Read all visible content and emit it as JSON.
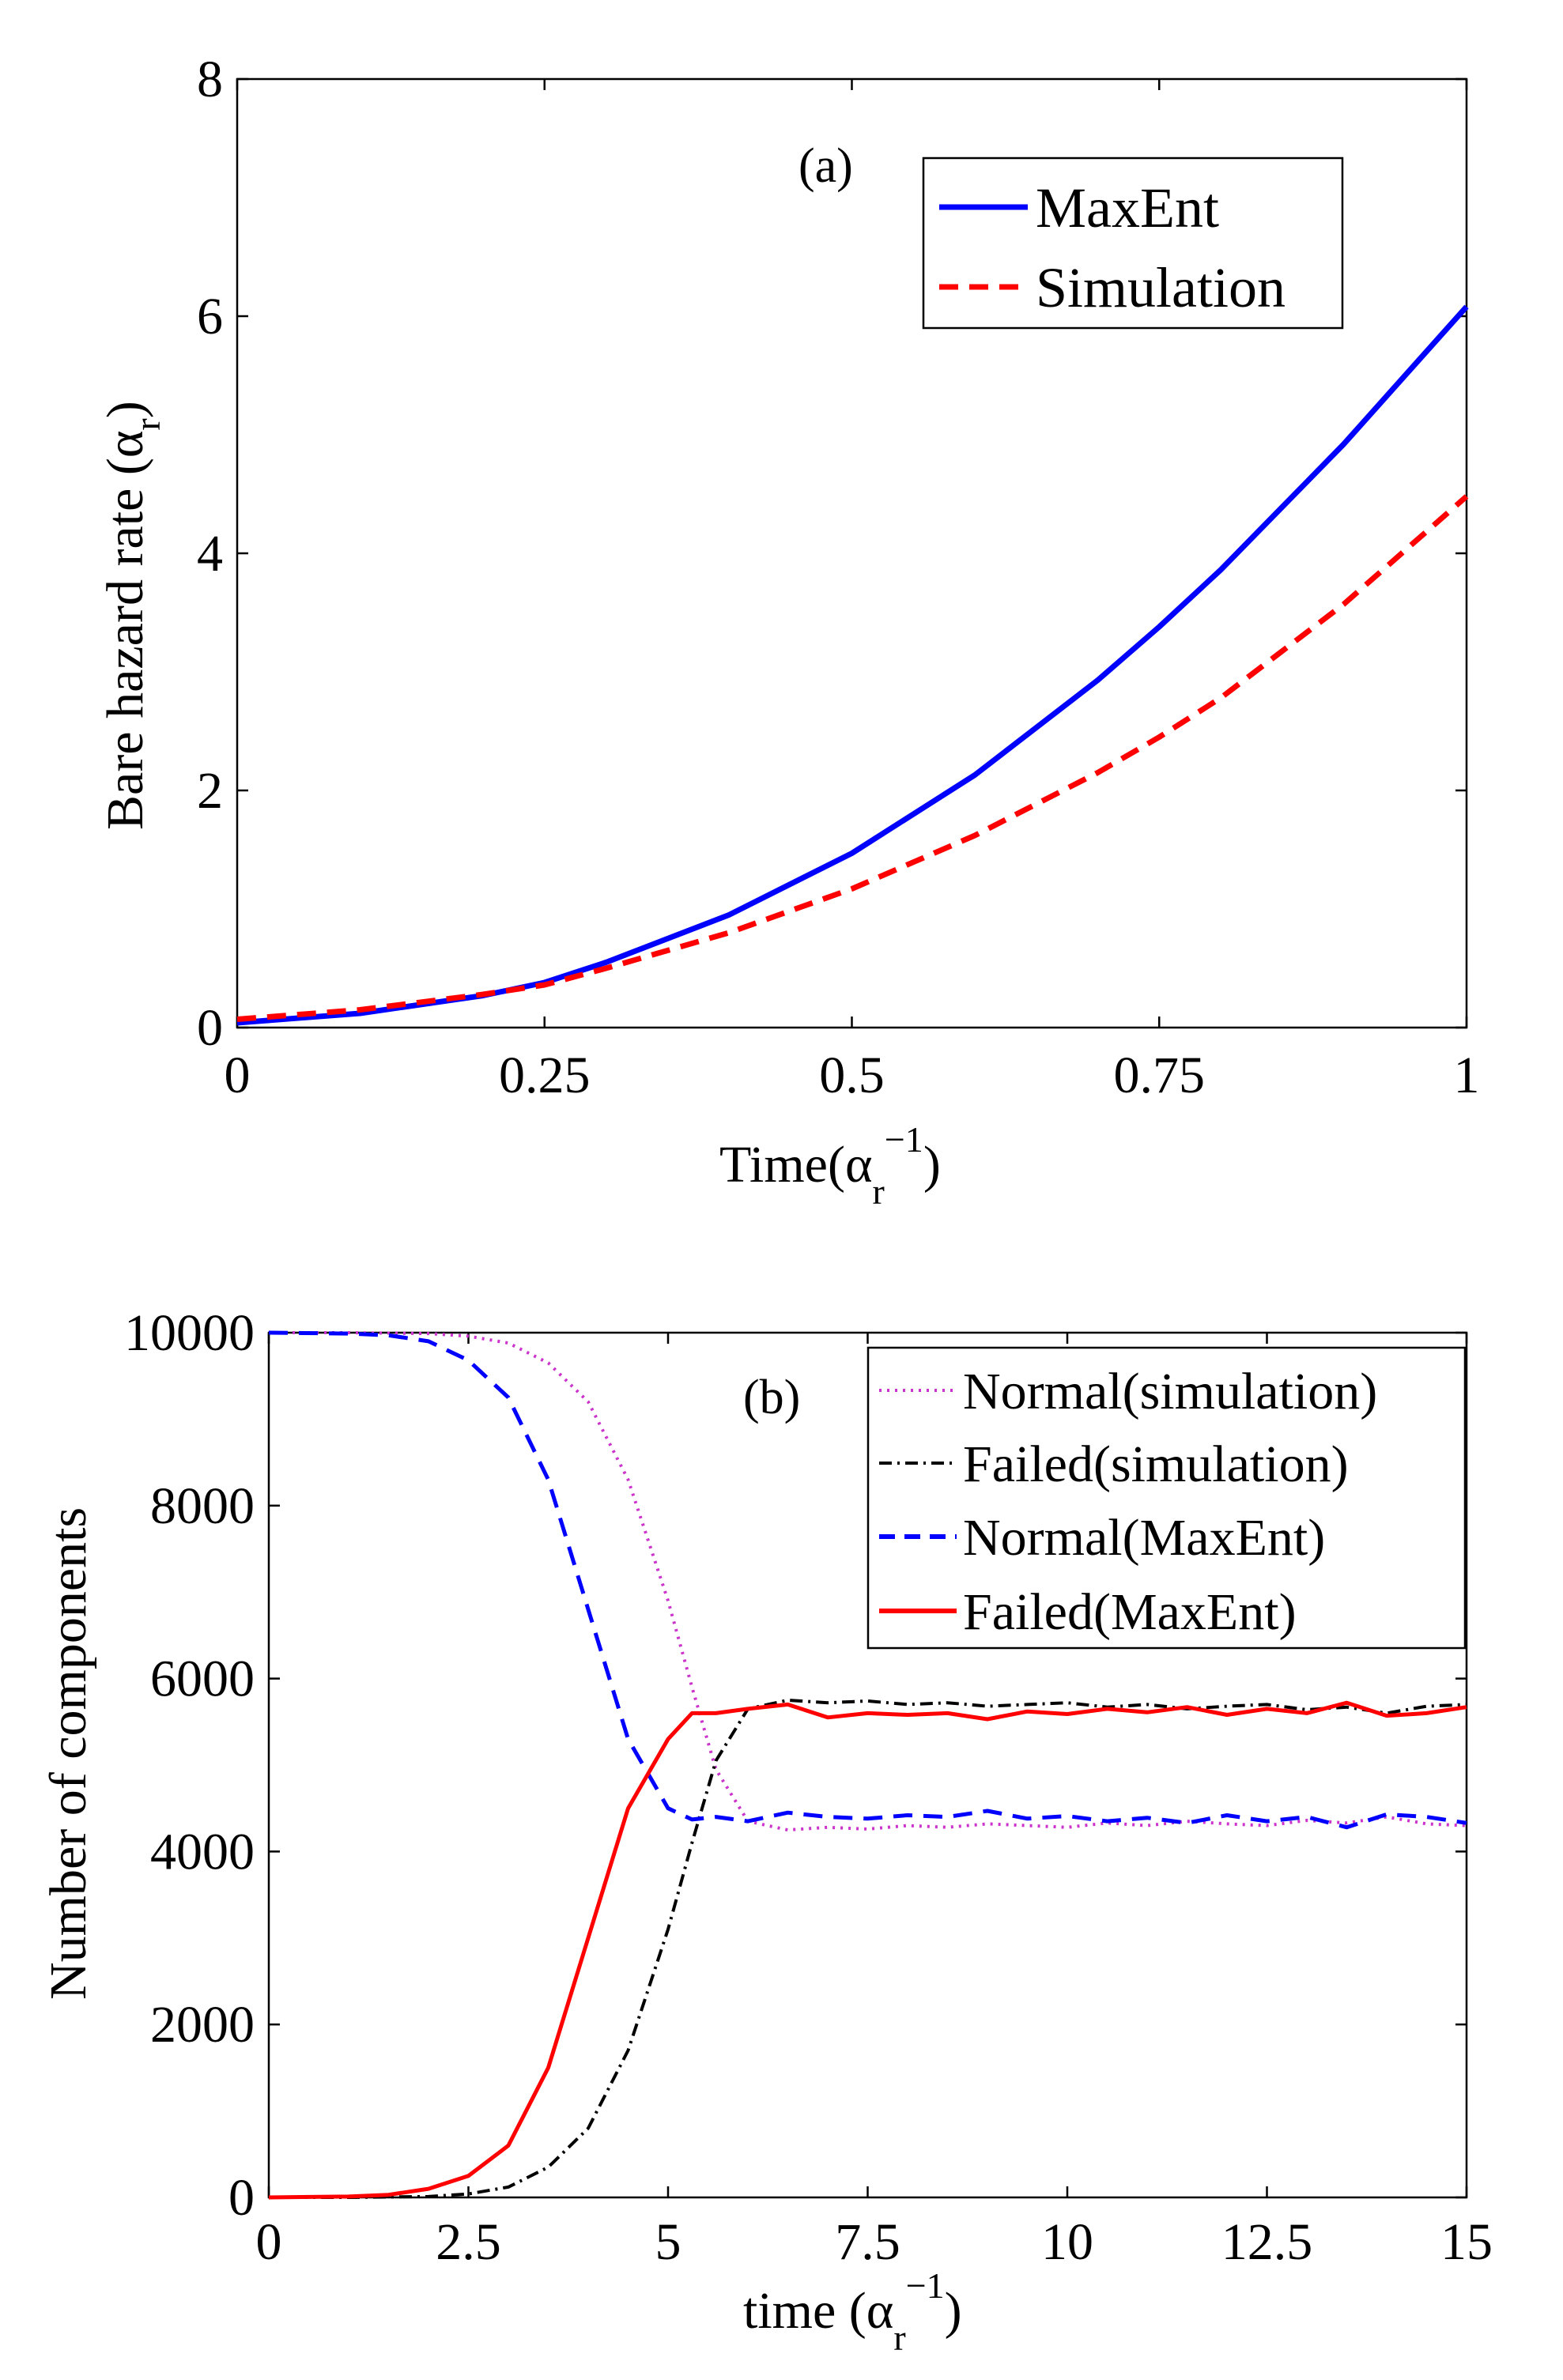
{
  "chart_data": [
    {
      "type": "line",
      "panel_label": "(a)",
      "xlabel": "Time(α_r^-1)",
      "ylabel": "Bare hazard rate (α_r)",
      "xlim": [
        0,
        1
      ],
      "ylim": [
        0,
        8
      ],
      "xticks": [
        0,
        0.25,
        0.5,
        0.75,
        1
      ],
      "xtick_labels": [
        "0",
        "0.25",
        "0.5",
        "0.75",
        "1"
      ],
      "yticks": [
        0,
        2,
        4,
        6,
        8
      ],
      "ytick_labels": [
        "0",
        "2",
        "4",
        "6",
        "8"
      ],
      "legend_position": "top-right",
      "grid": false,
      "series": [
        {
          "name": "MaxEnt",
          "color": "#0000ff",
          "style": "solid",
          "x": [
            0,
            0.1,
            0.2,
            0.25,
            0.3,
            0.4,
            0.5,
            0.6,
            0.7,
            0.75,
            0.8,
            0.9,
            1.0
          ],
          "y": [
            0.04,
            0.12,
            0.27,
            0.38,
            0.55,
            0.95,
            1.47,
            2.13,
            2.93,
            3.38,
            3.86,
            4.92,
            6.08
          ]
        },
        {
          "name": "Simulation",
          "color": "#ff0000",
          "style": "dashed",
          "x": [
            0,
            0.1,
            0.2,
            0.25,
            0.3,
            0.4,
            0.5,
            0.6,
            0.7,
            0.75,
            0.8,
            0.9,
            1.0
          ],
          "y": [
            0.07,
            0.15,
            0.28,
            0.36,
            0.5,
            0.8,
            1.17,
            1.62,
            2.15,
            2.45,
            2.78,
            3.57,
            4.48
          ]
        }
      ]
    },
    {
      "type": "line",
      "panel_label": "(b)",
      "xlabel": "time (α_r^-1)",
      "ylabel": "Number of components",
      "xlim": [
        0,
        15
      ],
      "ylim": [
        0,
        10000
      ],
      "xticks": [
        0,
        2.5,
        5,
        7.5,
        10,
        12.5,
        15
      ],
      "xtick_labels": [
        "0",
        "2.5",
        "5",
        "7.5",
        "10",
        "12.5",
        "15"
      ],
      "yticks": [
        0,
        2000,
        4000,
        6000,
        8000,
        10000
      ],
      "ytick_labels": [
        "0",
        "2000",
        "4000",
        "6000",
        "8000",
        "10000"
      ],
      "legend_position": "top-right",
      "grid": false,
      "series": [
        {
          "name": "Normal(simulation)",
          "color": "#cc33cc",
          "style": "dotted",
          "x": [
            0,
            1,
            2,
            2.5,
            3,
            3.5,
            4,
            4.5,
            5,
            5.3,
            5.6,
            6,
            6.5,
            7,
            7.5,
            8,
            8.5,
            9,
            9.5,
            10,
            10.5,
            11,
            11.5,
            12,
            12.5,
            13,
            13.5,
            14,
            14.5,
            15
          ],
          "y": [
            10000,
            10000,
            9990,
            9960,
            9880,
            9650,
            9200,
            8300,
            6900,
            5900,
            4950,
            4350,
            4250,
            4280,
            4260,
            4300,
            4280,
            4320,
            4300,
            4280,
            4330,
            4300,
            4350,
            4320,
            4300,
            4360,
            4330,
            4400,
            4320,
            4300
          ]
        },
        {
          "name": "Failed(simulation)",
          "color": "#000000",
          "style": "dashdot",
          "x": [
            0,
            1,
            2,
            2.5,
            3,
            3.5,
            4,
            4.5,
            5,
            5.3,
            5.6,
            6,
            6.5,
            7,
            7.5,
            8,
            8.5,
            9,
            9.5,
            10,
            10.5,
            11,
            11.5,
            12,
            12.5,
            13,
            13.5,
            14,
            14.5,
            15
          ],
          "y": [
            0,
            0,
            10,
            40,
            120,
            350,
            800,
            1700,
            3100,
            4100,
            5050,
            5650,
            5750,
            5720,
            5740,
            5700,
            5720,
            5680,
            5700,
            5720,
            5670,
            5700,
            5650,
            5680,
            5700,
            5640,
            5670,
            5600,
            5680,
            5700
          ]
        },
        {
          "name": "Normal(MaxEnt)",
          "color": "#0000ff",
          "style": "dashed",
          "x": [
            0,
            1,
            1.5,
            2,
            2.5,
            3,
            3.5,
            4,
            4.5,
            5,
            5.3,
            5.6,
            6,
            6.5,
            7,
            7.5,
            8,
            8.5,
            9,
            9.5,
            10,
            10.5,
            11,
            11.5,
            12,
            12.5,
            13,
            13.5,
            14,
            14.5,
            15
          ],
          "y": [
            10000,
            9990,
            9970,
            9900,
            9680,
            9250,
            8300,
            6800,
            5300,
            4500,
            4370,
            4400,
            4350,
            4450,
            4400,
            4380,
            4420,
            4400,
            4470,
            4380,
            4410,
            4350,
            4390,
            4330,
            4420,
            4350,
            4400,
            4280,
            4430,
            4400,
            4330
          ]
        },
        {
          "name": "Failed(MaxEnt)",
          "color": "#ff0000",
          "style": "solid",
          "x": [
            0,
            1,
            1.5,
            2,
            2.5,
            3,
            3.5,
            4,
            4.5,
            5,
            5.3,
            5.6,
            6,
            6.5,
            7,
            7.5,
            8,
            8.5,
            9,
            9.5,
            10,
            10.5,
            11,
            11.5,
            12,
            12.5,
            13,
            13.5,
            14,
            14.5,
            15
          ],
          "y": [
            0,
            10,
            30,
            100,
            250,
            600,
            1500,
            3000,
            4500,
            5300,
            5600,
            5600,
            5650,
            5700,
            5550,
            5600,
            5580,
            5600,
            5530,
            5620,
            5590,
            5650,
            5610,
            5670,
            5580,
            5650,
            5600,
            5720,
            5570,
            5600,
            5670
          ]
        }
      ]
    }
  ]
}
